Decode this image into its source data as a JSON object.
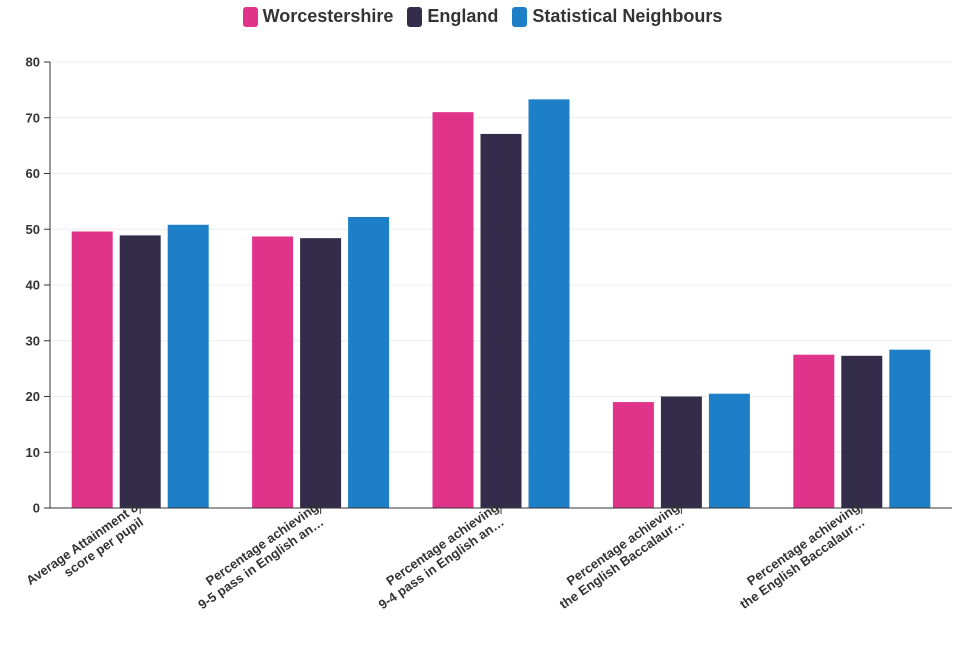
{
  "chart_data": {
    "type": "bar",
    "title": "",
    "xlabel": "",
    "ylabel": "",
    "ylim": [
      0,
      80
    ],
    "yticks": [
      0,
      10,
      20,
      30,
      40,
      50,
      60,
      70,
      80
    ],
    "grid": true,
    "legend_position": "top-center",
    "categories": [
      [
        "Average Attainment 8",
        "score per pupil"
      ],
      [
        "Percentage achieving",
        "9-5 pass in English an…"
      ],
      [
        "Percentage achieving",
        "9-4 pass in English an…"
      ],
      [
        "Percentage achieving",
        "the English Baccalaur…"
      ],
      [
        "Percentage achieving",
        "the English Baccalaur…"
      ]
    ],
    "series": [
      {
        "name": "Worcestershire",
        "color": "#e0338a",
        "values": [
          49.6,
          48.7,
          71.0,
          19.0,
          27.5
        ]
      },
      {
        "name": "England",
        "color": "#332c4a",
        "values": [
          48.9,
          48.4,
          67.1,
          20.0,
          27.3
        ]
      },
      {
        "name": "Statistical Neighbours",
        "color": "#1d7fc7",
        "values": [
          50.8,
          52.2,
          73.3,
          20.5,
          28.4
        ]
      }
    ]
  }
}
